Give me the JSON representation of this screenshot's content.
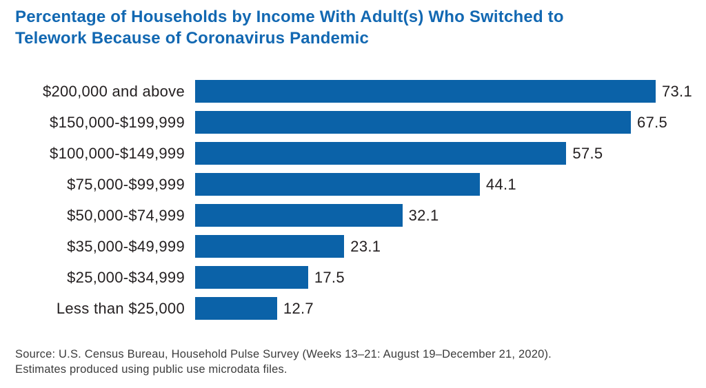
{
  "header": {
    "title_line1": "Percentage of Households by Income With Adult(s) Who Switched to",
    "title_line2": "Telework Because of Coronavirus Pandemic"
  },
  "source": {
    "line1": "Source: U.S. Census Bureau, Household Pulse Survey (Weeks 13–21: August 19–December 21, 2020).",
    "line2": "Estimates produced using public use microdata files."
  },
  "colors": {
    "title_blue": "#1268b2",
    "bar_blue": "#0b62a8",
    "label_dark": "#231f20",
    "source_gray": "#3c3c3c",
    "background": "#ffffff"
  },
  "chart_data": {
    "type": "bar",
    "orientation": "horizontal",
    "title": "Percentage of Households by Income With Adult(s) Who Switched to Telework Because of Coronavirus Pandemic",
    "categories": [
      "$200,000 and above",
      "$150,000-$199,999",
      "$100,000-$149,999",
      "$75,000-$99,999",
      "$50,000-$74,999",
      "$35,000-$49,999",
      "$25,000-$34,999",
      "Less than $25,000"
    ],
    "values": [
      73.1,
      67.5,
      57.5,
      44.1,
      32.1,
      23.1,
      17.5,
      12.7
    ],
    "xlabel": "",
    "ylabel": "",
    "axis_max": 77,
    "grid": false,
    "legend": "none",
    "value_labels_shown": true,
    "source_note": "Source: U.S. Census Bureau, Household Pulse Survey (Weeks 13–21: August 19–December 21, 2020). Estimates produced using public use microdata files."
  }
}
